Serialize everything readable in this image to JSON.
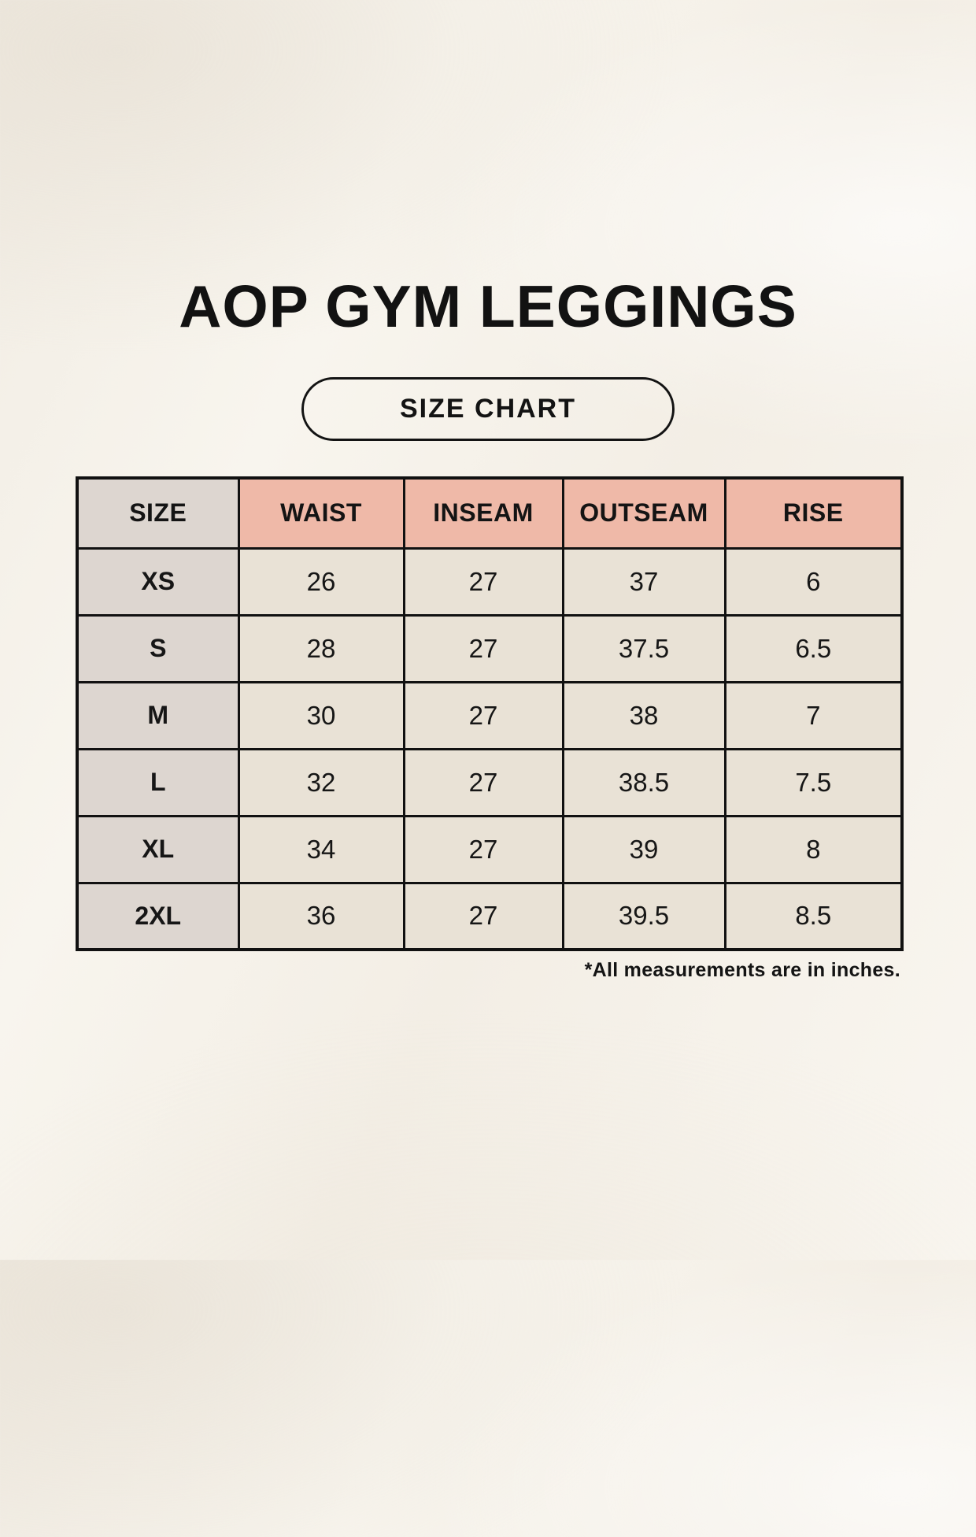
{
  "page": {
    "title": "AOP GYM LEGGINGS",
    "badge_label": "SIZE CHART",
    "footnote": "*All measurements are in inches."
  },
  "table": {
    "columns": [
      "SIZE",
      "WAIST",
      "INSEAM",
      "OUTSEAM",
      "RISE"
    ],
    "rows": [
      {
        "size": "XS",
        "values": [
          "26",
          "27",
          "37",
          "6"
        ]
      },
      {
        "size": "S",
        "values": [
          "28",
          "27",
          "37.5",
          "6.5"
        ]
      },
      {
        "size": "M",
        "values": [
          "30",
          "27",
          "38",
          "7"
        ]
      },
      {
        "size": "L",
        "values": [
          "32",
          "27",
          "38.5",
          "7.5"
        ]
      },
      {
        "size": "XL",
        "values": [
          "34",
          "27",
          "39",
          "8"
        ]
      },
      {
        "size": "2XL",
        "values": [
          "36",
          "27",
          "39.5",
          "8.5"
        ]
      }
    ]
  },
  "chart_data": {
    "type": "table",
    "title": "AOP GYM LEGGINGS",
    "columns": [
      "SIZE",
      "WAIST",
      "INSEAM",
      "OUTSEAM",
      "RISE"
    ],
    "rows": [
      [
        "XS",
        26,
        27,
        37,
        6
      ],
      [
        "S",
        28,
        27,
        37.5,
        6.5
      ],
      [
        "M",
        30,
        27,
        38,
        7
      ],
      [
        "L",
        32,
        27,
        38.5,
        7.5
      ],
      [
        "XL",
        34,
        27,
        39,
        8
      ],
      [
        "2XL",
        36,
        27,
        39.5,
        8.5
      ]
    ],
    "units": "inches"
  },
  "colors": {
    "background": "#F6F2EB",
    "header_pink": "#EFB9A8",
    "size_column_gray": "#DDD6D0",
    "cell_cream": "#E9E2D6",
    "border": "#111111",
    "text": "#161616"
  }
}
